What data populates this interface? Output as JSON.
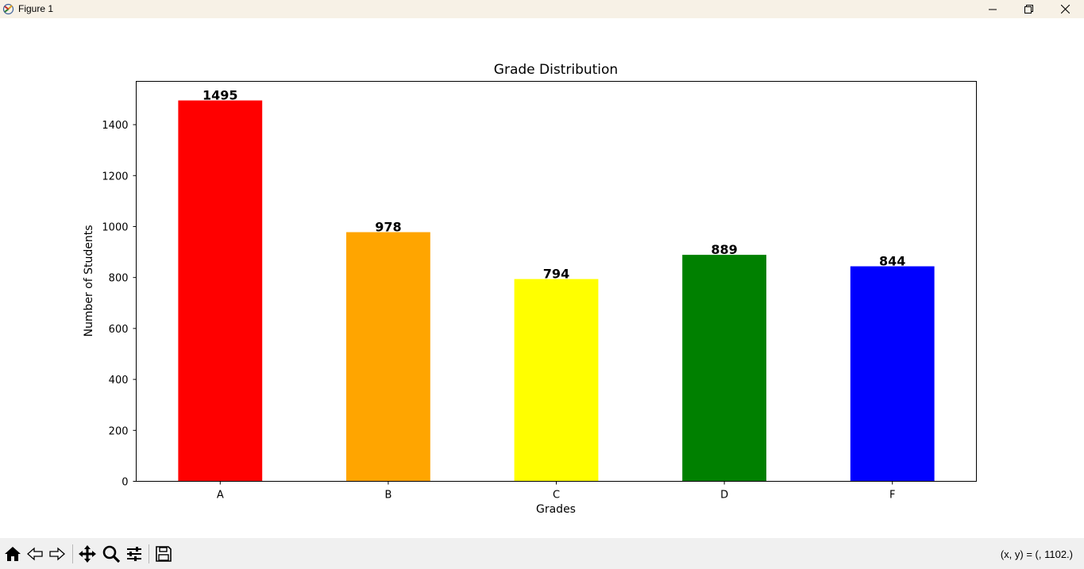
{
  "window": {
    "title": "Figure 1",
    "icons": [
      "app-icon",
      "minimize-icon",
      "maximize-icon",
      "close-icon"
    ]
  },
  "toolbar": {
    "tools": [
      "home-icon",
      "back-icon",
      "forward-icon",
      "pan-icon",
      "zoom-icon",
      "configure-subplots-icon",
      "save-icon"
    ],
    "coords_text": "(x, y) = (, 1102.)"
  },
  "chart_data": {
    "type": "bar",
    "title": "Grade Distribution",
    "xlabel": "Grades",
    "ylabel": "Number of Students",
    "categories": [
      "A",
      "B",
      "C",
      "D",
      "F"
    ],
    "values": [
      1495,
      978,
      794,
      889,
      844
    ],
    "colors": [
      "#ff0000",
      "#ffa500",
      "#ffff00",
      "#008000",
      "#0000ff"
    ],
    "value_labels": [
      "1495",
      "978",
      "794",
      "889",
      "844"
    ],
    "ylim": [
      0,
      1570
    ],
    "yticks": [
      0,
      200,
      400,
      600,
      800,
      1000,
      1200,
      1400
    ],
    "grid": false
  }
}
